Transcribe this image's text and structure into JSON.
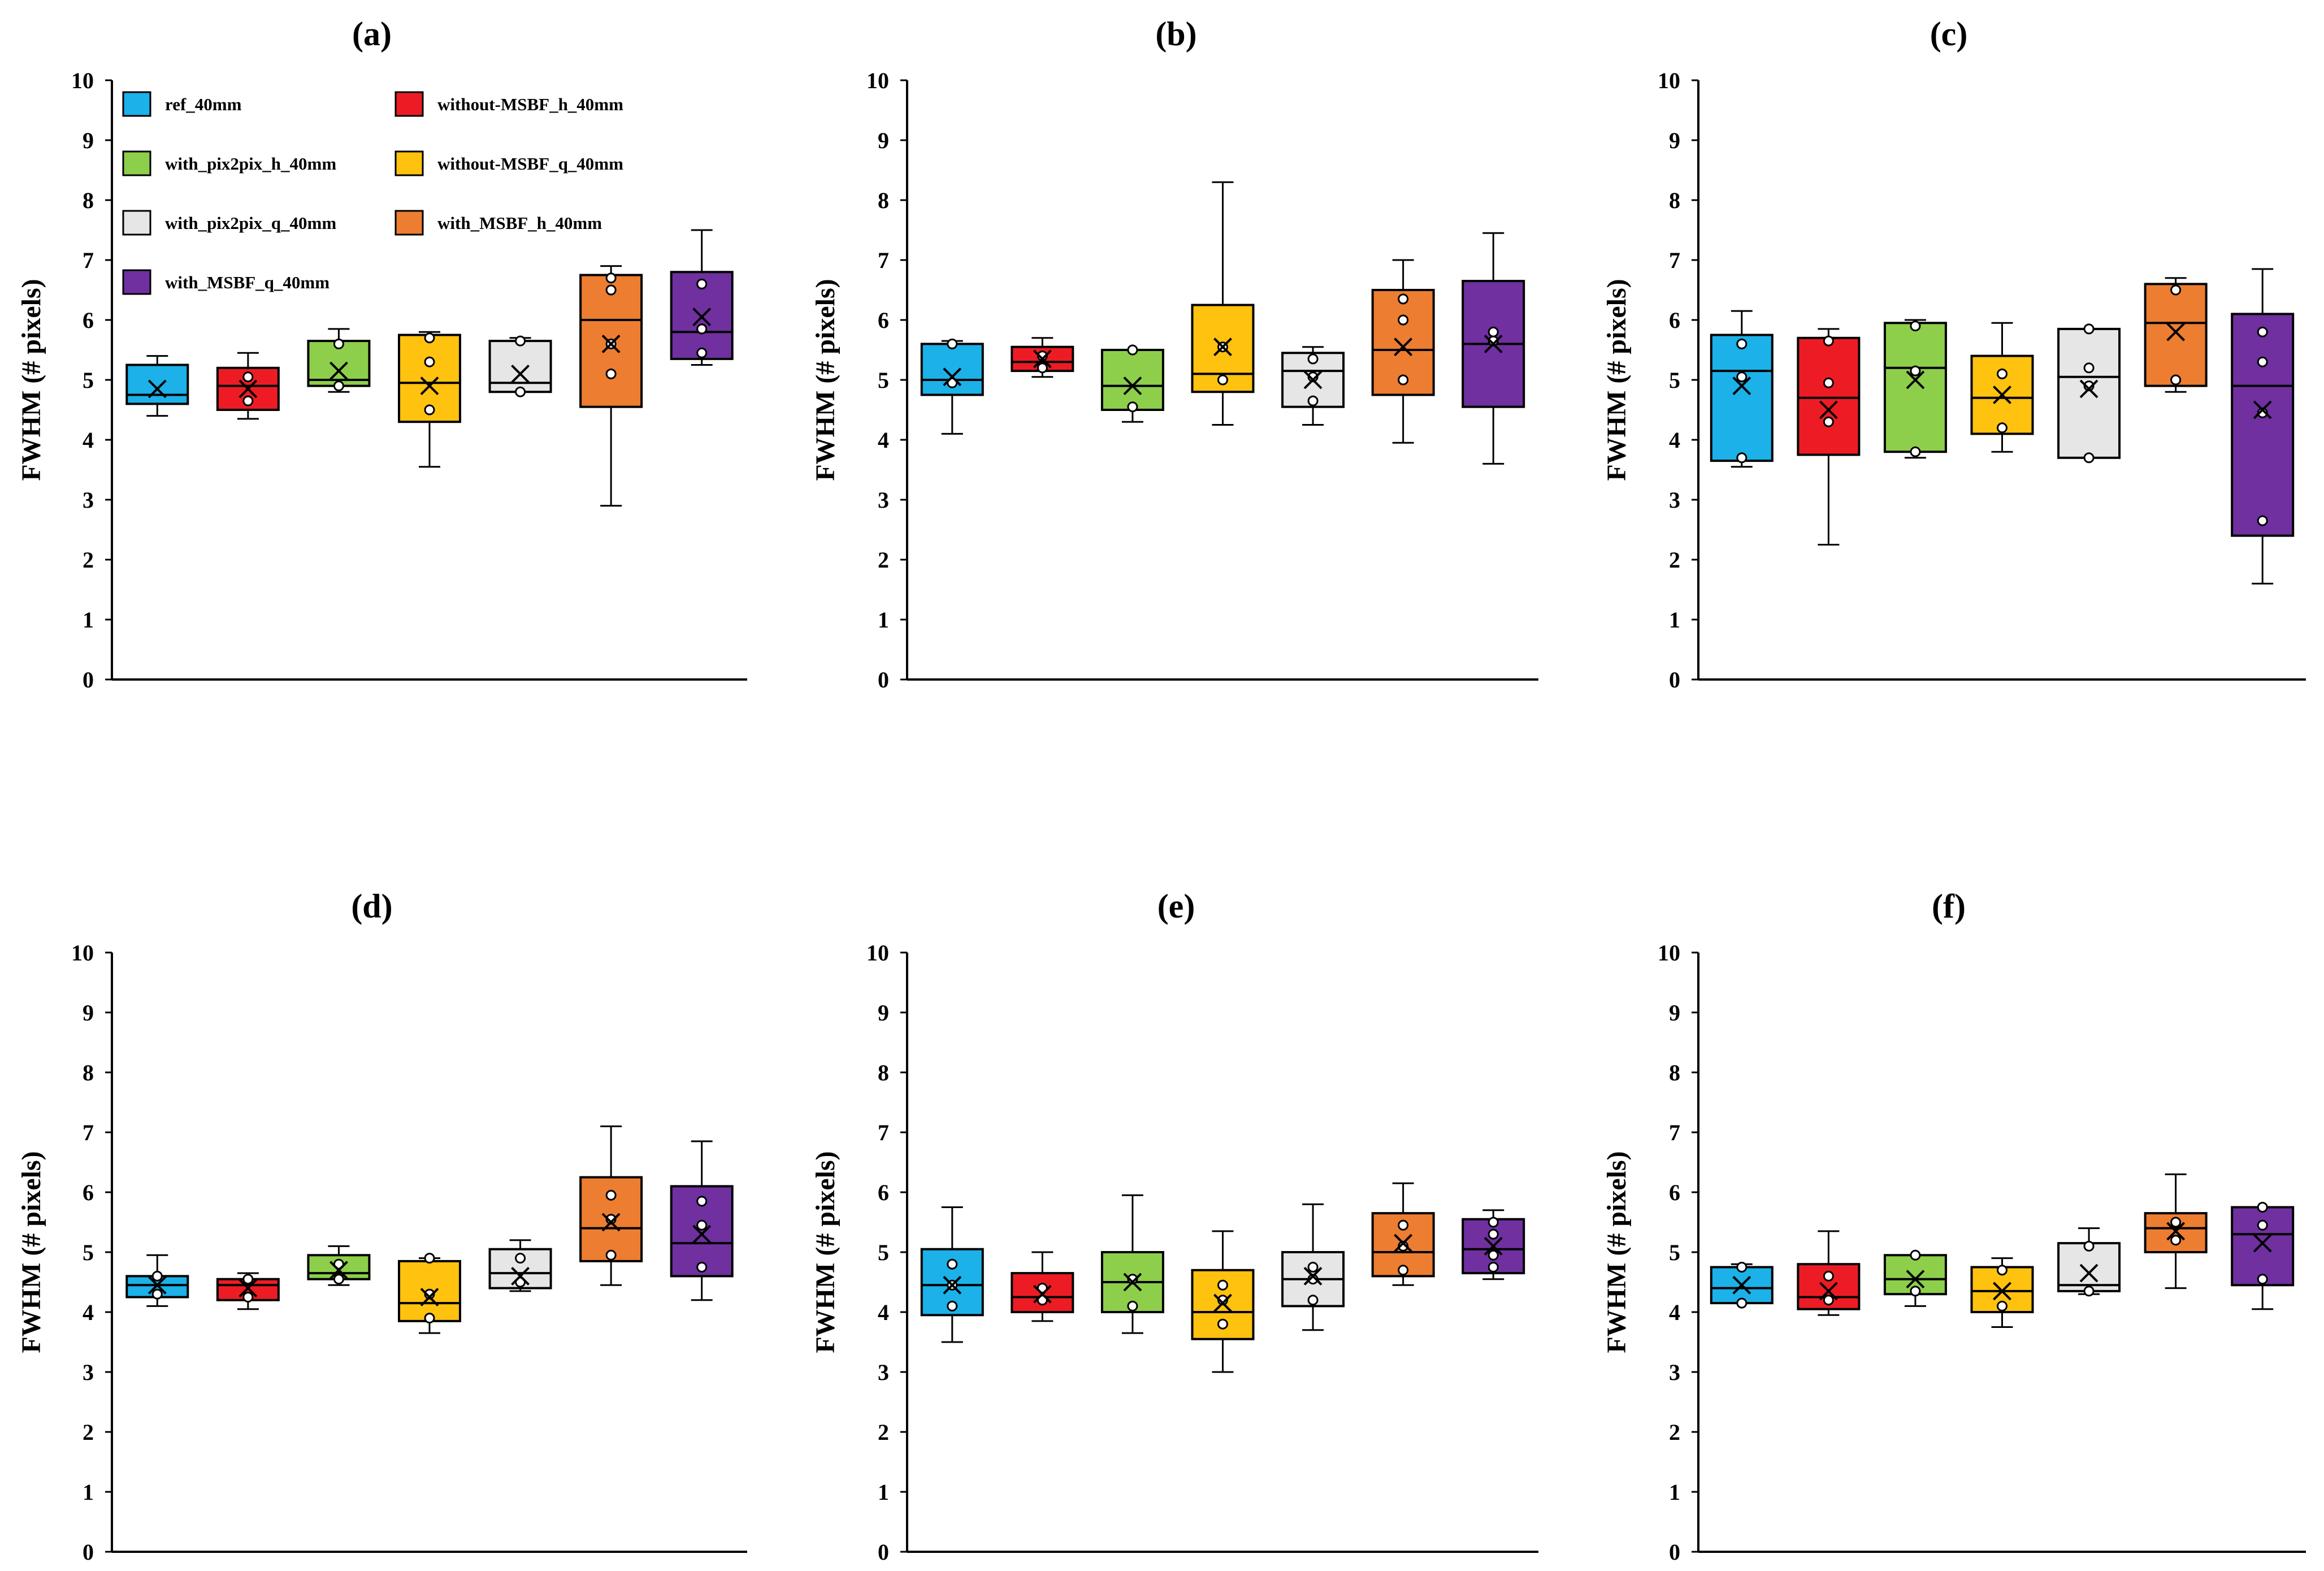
{
  "chart_data": [
    {
      "type": "box",
      "title": "(a)",
      "ylabel": "FWHM (# pixels)",
      "ylim": [
        0,
        10
      ],
      "yticks": [
        0,
        1,
        2,
        3,
        4,
        5,
        6,
        7,
        8,
        9,
        10
      ],
      "grid": false,
      "legend": {
        "placement": "top-left",
        "entries": [
          {
            "name": "ref_40mm",
            "color": "#1cb1e8"
          },
          {
            "name": "without-MSBF_h_40mm",
            "color": "#ed1c24"
          },
          {
            "name": "with_pix2pix_h_40mm",
            "color": "#8dcf4a"
          },
          {
            "name": "without-MSBF_q_40mm",
            "color": "#ffc20e"
          },
          {
            "name": "with_pix2pix_q_40mm",
            "color": "#e6e6e6"
          },
          {
            "name": "with_MSBF_h_40mm",
            "color": "#ed7d31"
          },
          {
            "name": "with_MSBF_q_40mm",
            "color": "#7030a0"
          }
        ]
      },
      "series": [
        {
          "name": "ref_40mm",
          "color": "#1cb1e8",
          "min": 4.4,
          "q1": 4.6,
          "median": 4.75,
          "q3": 5.25,
          "max": 5.4,
          "mean": 4.85,
          "points": []
        },
        {
          "name": "without-MSBF_h_40mm",
          "color": "#ed1c24",
          "min": 4.35,
          "q1": 4.5,
          "median": 4.9,
          "q3": 5.2,
          "max": 5.45,
          "mean": 4.85,
          "points": [
            4.65,
            5.05
          ]
        },
        {
          "name": "with_pix2pix_h_40mm",
          "color": "#8dcf4a",
          "min": 4.8,
          "q1": 4.9,
          "median": 5.0,
          "q3": 5.65,
          "max": 5.85,
          "mean": 5.15,
          "points": [
            4.9,
            5.6
          ]
        },
        {
          "name": "without-MSBF_q_40mm",
          "color": "#ffc20e",
          "min": 3.55,
          "q1": 4.3,
          "median": 4.95,
          "q3": 5.75,
          "max": 5.8,
          "mean": 4.9,
          "points": [
            4.5,
            5.3,
            5.7
          ]
        },
        {
          "name": "with_pix2pix_q_40mm",
          "color": "#e6e6e6",
          "min": 4.8,
          "q1": 4.8,
          "median": 4.95,
          "q3": 5.65,
          "max": 5.7,
          "mean": 5.1,
          "points": [
            4.8,
            5.65
          ]
        },
        {
          "name": "with_MSBF_h_40mm",
          "color": "#ed7d31",
          "min": 2.9,
          "q1": 4.55,
          "median": 6.0,
          "q3": 6.75,
          "max": 6.9,
          "mean": 5.6,
          "points": [
            5.1,
            5.6,
            6.5,
            6.7
          ]
        },
        {
          "name": "with_MSBF_q_40mm",
          "color": "#7030a0",
          "min": 5.25,
          "q1": 5.35,
          "median": 5.8,
          "q3": 6.8,
          "max": 7.5,
          "mean": 6.05,
          "points": [
            5.45,
            5.85,
            6.6
          ]
        }
      ]
    },
    {
      "type": "box",
      "title": "(b)",
      "ylabel": "FWHM (# pixels)",
      "ylim": [
        0,
        10
      ],
      "yticks": [
        0,
        1,
        2,
        3,
        4,
        5,
        6,
        7,
        8,
        9,
        10
      ],
      "grid": false,
      "series": [
        {
          "name": "ref_40mm",
          "color": "#1cb1e8",
          "min": 4.1,
          "q1": 4.75,
          "median": 5.0,
          "q3": 5.6,
          "max": 5.65,
          "mean": 5.05,
          "points": [
            4.95,
            5.6
          ]
        },
        {
          "name": "without-MSBF_h_40mm",
          "color": "#ed1c24",
          "min": 5.05,
          "q1": 5.15,
          "median": 5.3,
          "q3": 5.55,
          "max": 5.7,
          "mean": 5.35,
          "points": [
            5.2,
            5.4
          ]
        },
        {
          "name": "with_pix2pix_h_40mm",
          "color": "#8dcf4a",
          "min": 4.3,
          "q1": 4.5,
          "median": 4.9,
          "q3": 5.5,
          "max": 5.5,
          "mean": 4.9,
          "points": [
            4.55,
            5.5
          ]
        },
        {
          "name": "without-MSBF_q_40mm",
          "color": "#ffc20e",
          "min": 4.25,
          "q1": 4.8,
          "median": 5.1,
          "q3": 6.25,
          "max": 8.3,
          "mean": 5.55,
          "points": [
            5.0,
            5.55
          ]
        },
        {
          "name": "with_pix2pix_q_40mm",
          "color": "#e6e6e6",
          "min": 4.25,
          "q1": 4.55,
          "median": 5.15,
          "q3": 5.45,
          "max": 5.55,
          "mean": 5.0,
          "points": [
            4.65,
            5.05,
            5.35
          ]
        },
        {
          "name": "with_MSBF_h_40mm",
          "color": "#ed7d31",
          "min": 3.95,
          "q1": 4.75,
          "median": 5.5,
          "q3": 6.5,
          "max": 7.0,
          "mean": 5.55,
          "points": [
            5.0,
            6.0,
            6.35
          ]
        },
        {
          "name": "with_MSBF_q_40mm",
          "color": "#7030a0",
          "min": 3.6,
          "q1": 4.55,
          "median": 5.6,
          "q3": 6.65,
          "max": 7.45,
          "mean": 5.6,
          "points": [
            5.65,
            5.8
          ]
        }
      ]
    },
    {
      "type": "box",
      "title": "(c)",
      "ylabel": "FWHM (# pixels)",
      "ylim": [
        0,
        10
      ],
      "yticks": [
        0,
        1,
        2,
        3,
        4,
        5,
        6,
        7,
        8,
        9,
        10
      ],
      "grid": false,
      "series": [
        {
          "name": "ref_40mm",
          "color": "#1cb1e8",
          "min": 3.55,
          "q1": 3.65,
          "median": 5.15,
          "q3": 5.75,
          "max": 6.15,
          "mean": 4.9,
          "points": [
            3.7,
            5.05,
            5.6
          ]
        },
        {
          "name": "without-MSBF_h_40mm",
          "color": "#ed1c24",
          "min": 2.25,
          "q1": 3.75,
          "median": 4.7,
          "q3": 5.7,
          "max": 5.85,
          "mean": 4.5,
          "points": [
            4.3,
            4.95,
            5.65
          ]
        },
        {
          "name": "with_pix2pix_h_40mm",
          "color": "#8dcf4a",
          "min": 3.7,
          "q1": 3.8,
          "median": 5.2,
          "q3": 5.95,
          "max": 6.0,
          "mean": 5.0,
          "points": [
            3.8,
            5.15,
            5.9
          ]
        },
        {
          "name": "without-MSBF_q_40mm",
          "color": "#ffc20e",
          "min": 3.8,
          "q1": 4.1,
          "median": 4.7,
          "q3": 5.4,
          "max": 5.95,
          "mean": 4.75,
          "points": [
            4.2,
            5.1
          ]
        },
        {
          "name": "with_pix2pix_q_40mm",
          "color": "#e6e6e6",
          "min": 3.7,
          "q1": 3.7,
          "median": 5.05,
          "q3": 5.85,
          "max": 5.85,
          "mean": 4.85,
          "points": [
            3.7,
            4.9,
            5.2,
            5.85
          ]
        },
        {
          "name": "with_MSBF_h_40mm",
          "color": "#ed7d31",
          "min": 4.8,
          "q1": 4.9,
          "median": 5.95,
          "q3": 6.6,
          "max": 6.7,
          "mean": 5.8,
          "points": [
            5.0,
            6.5
          ]
        },
        {
          "name": "with_MSBF_q_40mm",
          "color": "#7030a0",
          "min": 1.6,
          "q1": 2.4,
          "median": 4.9,
          "q3": 6.1,
          "max": 6.85,
          "mean": 4.5,
          "points": [
            2.65,
            4.45,
            5.3,
            5.8
          ]
        }
      ]
    },
    {
      "type": "box",
      "title": "(d)",
      "ylabel": "FWHM (# pixels)",
      "ylim": [
        0,
        10
      ],
      "yticks": [
        0,
        1,
        2,
        3,
        4,
        5,
        6,
        7,
        8,
        9,
        10
      ],
      "grid": false,
      "series": [
        {
          "name": "ref_40mm",
          "color": "#1cb1e8",
          "min": 4.1,
          "q1": 4.25,
          "median": 4.45,
          "q3": 4.6,
          "max": 4.95,
          "mean": 4.45,
          "points": [
            4.3,
            4.6
          ]
        },
        {
          "name": "without-MSBF_h_40mm",
          "color": "#ed1c24",
          "min": 4.05,
          "q1": 4.2,
          "median": 4.45,
          "q3": 4.55,
          "max": 4.65,
          "mean": 4.4,
          "points": [
            4.25,
            4.55
          ]
        },
        {
          "name": "with_pix2pix_h_40mm",
          "color": "#8dcf4a",
          "min": 4.45,
          "q1": 4.55,
          "median": 4.65,
          "q3": 4.95,
          "max": 5.1,
          "mean": 4.7,
          "points": [
            4.55,
            4.8
          ]
        },
        {
          "name": "without-MSBF_q_40mm",
          "color": "#ffc20e",
          "min": 3.65,
          "q1": 3.85,
          "median": 4.15,
          "q3": 4.85,
          "max": 4.9,
          "mean": 4.25,
          "points": [
            3.9,
            4.3,
            4.9
          ]
        },
        {
          "name": "with_pix2pix_q_40mm",
          "color": "#e6e6e6",
          "min": 4.35,
          "q1": 4.4,
          "median": 4.65,
          "q3": 5.05,
          "max": 5.2,
          "mean": 4.6,
          "points": [
            4.5,
            4.9
          ]
        },
        {
          "name": "with_MSBF_h_40mm",
          "color": "#ed7d31",
          "min": 4.45,
          "q1": 4.85,
          "median": 5.4,
          "q3": 6.25,
          "max": 7.1,
          "mean": 5.5,
          "points": [
            4.95,
            5.55,
            5.95
          ]
        },
        {
          "name": "with_MSBF_q_40mm",
          "color": "#7030a0",
          "min": 4.2,
          "q1": 4.6,
          "median": 5.15,
          "q3": 6.1,
          "max": 6.85,
          "mean": 5.3,
          "points": [
            4.75,
            5.45,
            5.85
          ]
        }
      ]
    },
    {
      "type": "box",
      "title": "(e)",
      "ylabel": "FWHM (# pixels)",
      "ylim": [
        0,
        10
      ],
      "yticks": [
        0,
        1,
        2,
        3,
        4,
        5,
        6,
        7,
        8,
        9,
        10
      ],
      "grid": false,
      "series": [
        {
          "name": "ref_40mm",
          "color": "#1cb1e8",
          "min": 3.5,
          "q1": 3.95,
          "median": 4.45,
          "q3": 5.05,
          "max": 5.75,
          "mean": 4.45,
          "points": [
            4.1,
            4.45,
            4.8
          ]
        },
        {
          "name": "without-MSBF_h_40mm",
          "color": "#ed1c24",
          "min": 3.85,
          "q1": 4.0,
          "median": 4.25,
          "q3": 4.65,
          "max": 5.0,
          "mean": 4.3,
          "points": [
            4.2,
            4.4
          ]
        },
        {
          "name": "with_pix2pix_h_40mm",
          "color": "#8dcf4a",
          "min": 3.65,
          "q1": 4.0,
          "median": 4.5,
          "q3": 5.0,
          "max": 5.95,
          "mean": 4.5,
          "points": [
            4.1,
            4.55
          ]
        },
        {
          "name": "without-MSBF_q_40mm",
          "color": "#ffc20e",
          "min": 3.0,
          "q1": 3.55,
          "median": 4.0,
          "q3": 4.7,
          "max": 5.35,
          "mean": 4.15,
          "points": [
            3.8,
            4.2,
            4.45
          ]
        },
        {
          "name": "with_pix2pix_q_40mm",
          "color": "#e6e6e6",
          "min": 3.7,
          "q1": 4.1,
          "median": 4.55,
          "q3": 5.0,
          "max": 5.8,
          "mean": 4.6,
          "points": [
            4.2,
            4.55,
            4.75
          ]
        },
        {
          "name": "with_MSBF_h_40mm",
          "color": "#ed7d31",
          "min": 4.45,
          "q1": 4.6,
          "median": 5.0,
          "q3": 5.65,
          "max": 6.15,
          "mean": 5.15,
          "points": [
            4.7,
            5.1,
            5.45
          ]
        },
        {
          "name": "with_MSBF_q_40mm",
          "color": "#7030a0",
          "min": 4.55,
          "q1": 4.65,
          "median": 5.05,
          "q3": 5.55,
          "max": 5.7,
          "mean": 5.1,
          "points": [
            4.75,
            4.95,
            5.3,
            5.5
          ]
        }
      ]
    },
    {
      "type": "box",
      "title": "(f)",
      "ylabel": "FWHM (# pixels)",
      "ylim": [
        0,
        10
      ],
      "yticks": [
        0,
        1,
        2,
        3,
        4,
        5,
        6,
        7,
        8,
        9,
        10
      ],
      "grid": false,
      "series": [
        {
          "name": "ref_40mm",
          "color": "#1cb1e8",
          "min": 4.15,
          "q1": 4.15,
          "median": 4.4,
          "q3": 4.75,
          "max": 4.8,
          "mean": 4.45,
          "points": [
            4.15,
            4.75
          ]
        },
        {
          "name": "without-MSBF_h_40mm",
          "color": "#ed1c24",
          "min": 3.95,
          "q1": 4.05,
          "median": 4.25,
          "q3": 4.8,
          "max": 5.35,
          "mean": 4.35,
          "points": [
            4.2,
            4.6
          ]
        },
        {
          "name": "with_pix2pix_h_40mm",
          "color": "#8dcf4a",
          "min": 4.1,
          "q1": 4.3,
          "median": 4.55,
          "q3": 4.95,
          "max": 4.95,
          "mean": 4.55,
          "points": [
            4.35,
            4.95
          ]
        },
        {
          "name": "without-MSBF_q_40mm",
          "color": "#ffc20e",
          "min": 3.75,
          "q1": 4.0,
          "median": 4.35,
          "q3": 4.75,
          "max": 4.9,
          "mean": 4.35,
          "points": [
            4.1,
            4.7
          ]
        },
        {
          "name": "with_pix2pix_q_40mm",
          "color": "#e6e6e6",
          "min": 4.3,
          "q1": 4.35,
          "median": 4.45,
          "q3": 5.15,
          "max": 5.4,
          "mean": 4.65,
          "points": [
            4.35,
            5.1
          ]
        },
        {
          "name": "with_MSBF_h_40mm",
          "color": "#ed7d31",
          "min": 4.4,
          "q1": 5.0,
          "median": 5.4,
          "q3": 5.65,
          "max": 6.3,
          "mean": 5.35,
          "points": [
            5.2,
            5.5
          ]
        },
        {
          "name": "with_MSBF_q_40mm",
          "color": "#7030a0",
          "min": 4.05,
          "q1": 4.45,
          "median": 5.3,
          "q3": 5.75,
          "max": 5.75,
          "mean": 5.15,
          "points": [
            4.55,
            5.45,
            5.75
          ]
        }
      ]
    }
  ]
}
